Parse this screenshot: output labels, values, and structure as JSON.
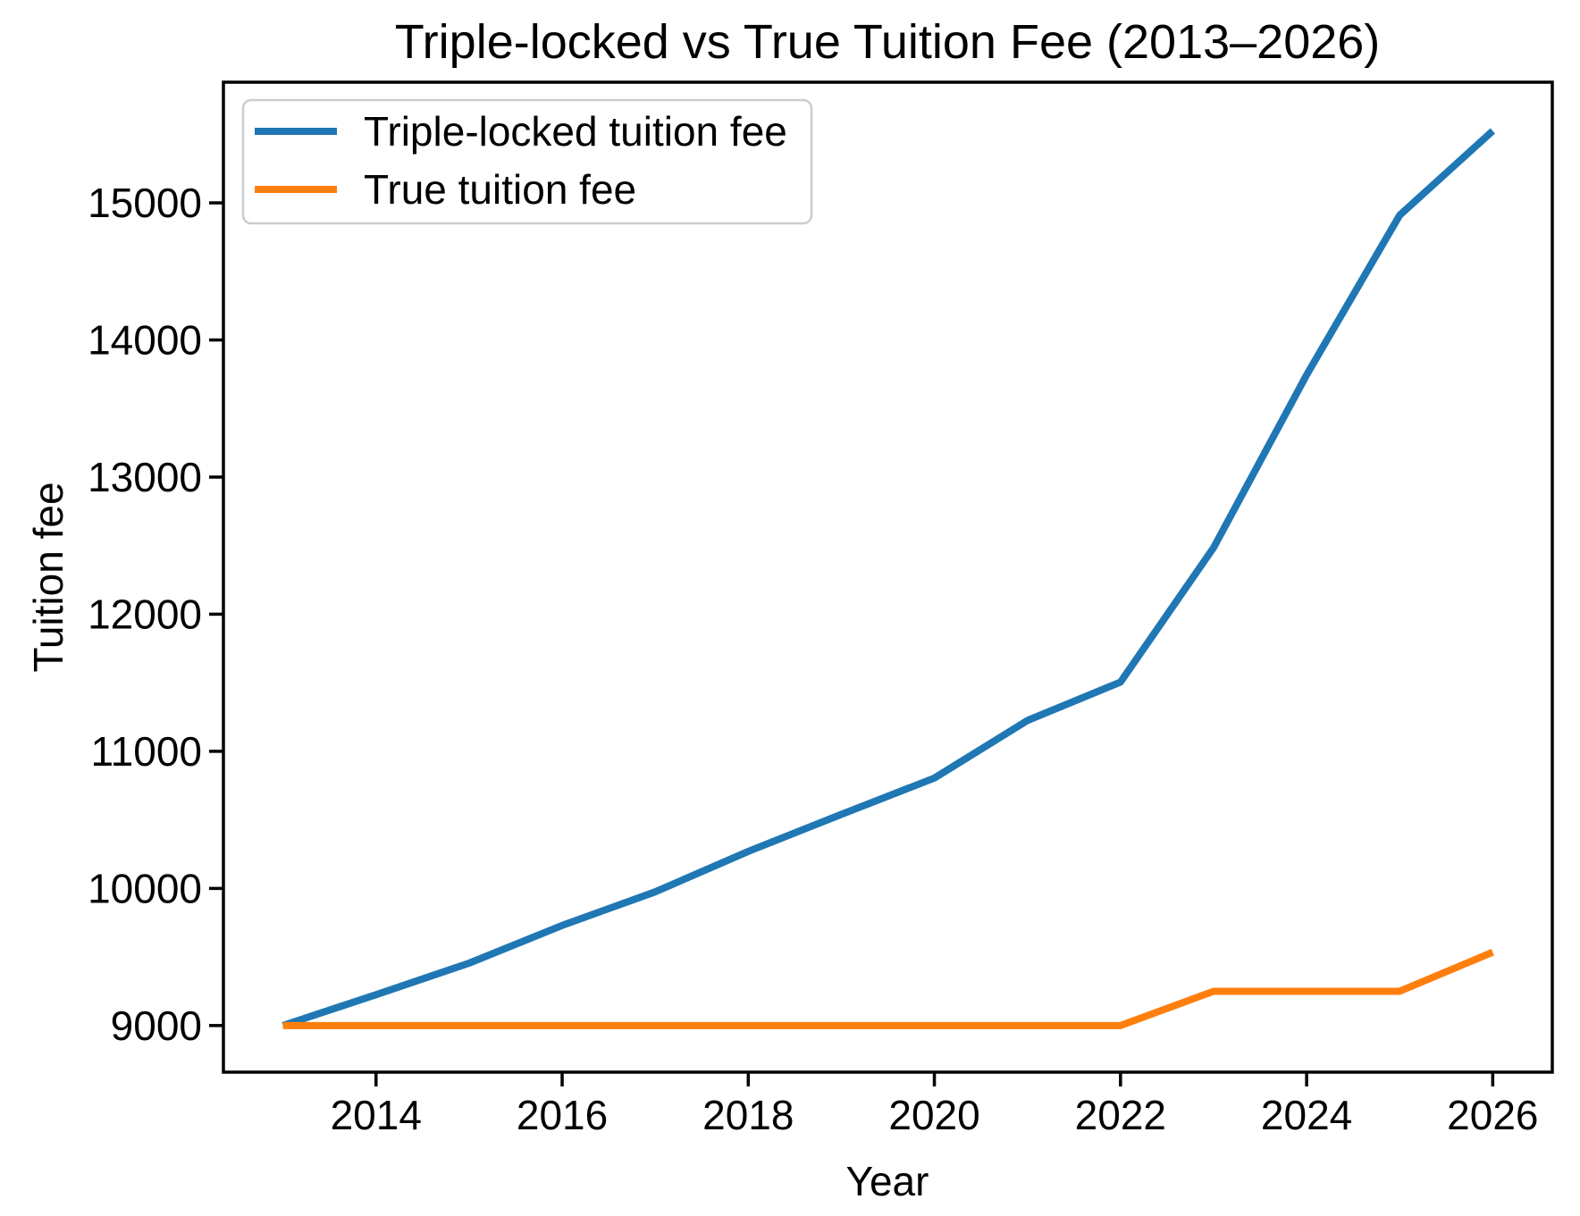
{
  "chart_data": {
    "type": "line",
    "title": "Triple-locked vs True Tuition Fee (2013–2026)",
    "xlabel": "Year",
    "ylabel": "Tuition fee",
    "x": [
      2013,
      2014,
      2015,
      2016,
      2017,
      2018,
      2019,
      2020,
      2021,
      2022,
      2023,
      2024,
      2025,
      2026
    ],
    "series": [
      {
        "name": "Triple-locked tuition fee",
        "color": "#1f77b4",
        "values": [
          9000,
          9225,
          9455,
          9730,
          9975,
          10270,
          10540,
          10805,
          11225,
          11505,
          12485,
          13745,
          14910,
          15525
        ]
      },
      {
        "name": "True tuition fee",
        "color": "#ff7f0e",
        "values": [
          9000,
          9000,
          9000,
          9000,
          9000,
          9000,
          9000,
          9000,
          9000,
          9000,
          9250,
          9250,
          9250,
          9535
        ]
      }
    ],
    "xticks": [
      2014,
      2016,
      2018,
      2020,
      2022,
      2024,
      2026
    ],
    "yticks": [
      9000,
      10000,
      11000,
      12000,
      13000,
      14000,
      15000
    ],
    "xlim": [
      2012.36,
      2026.64
    ],
    "ylim": [
      8660,
      15880
    ],
    "grid": false,
    "legend_position": "upper-left",
    "axis_color": "#000000",
    "background": "#ffffff"
  }
}
